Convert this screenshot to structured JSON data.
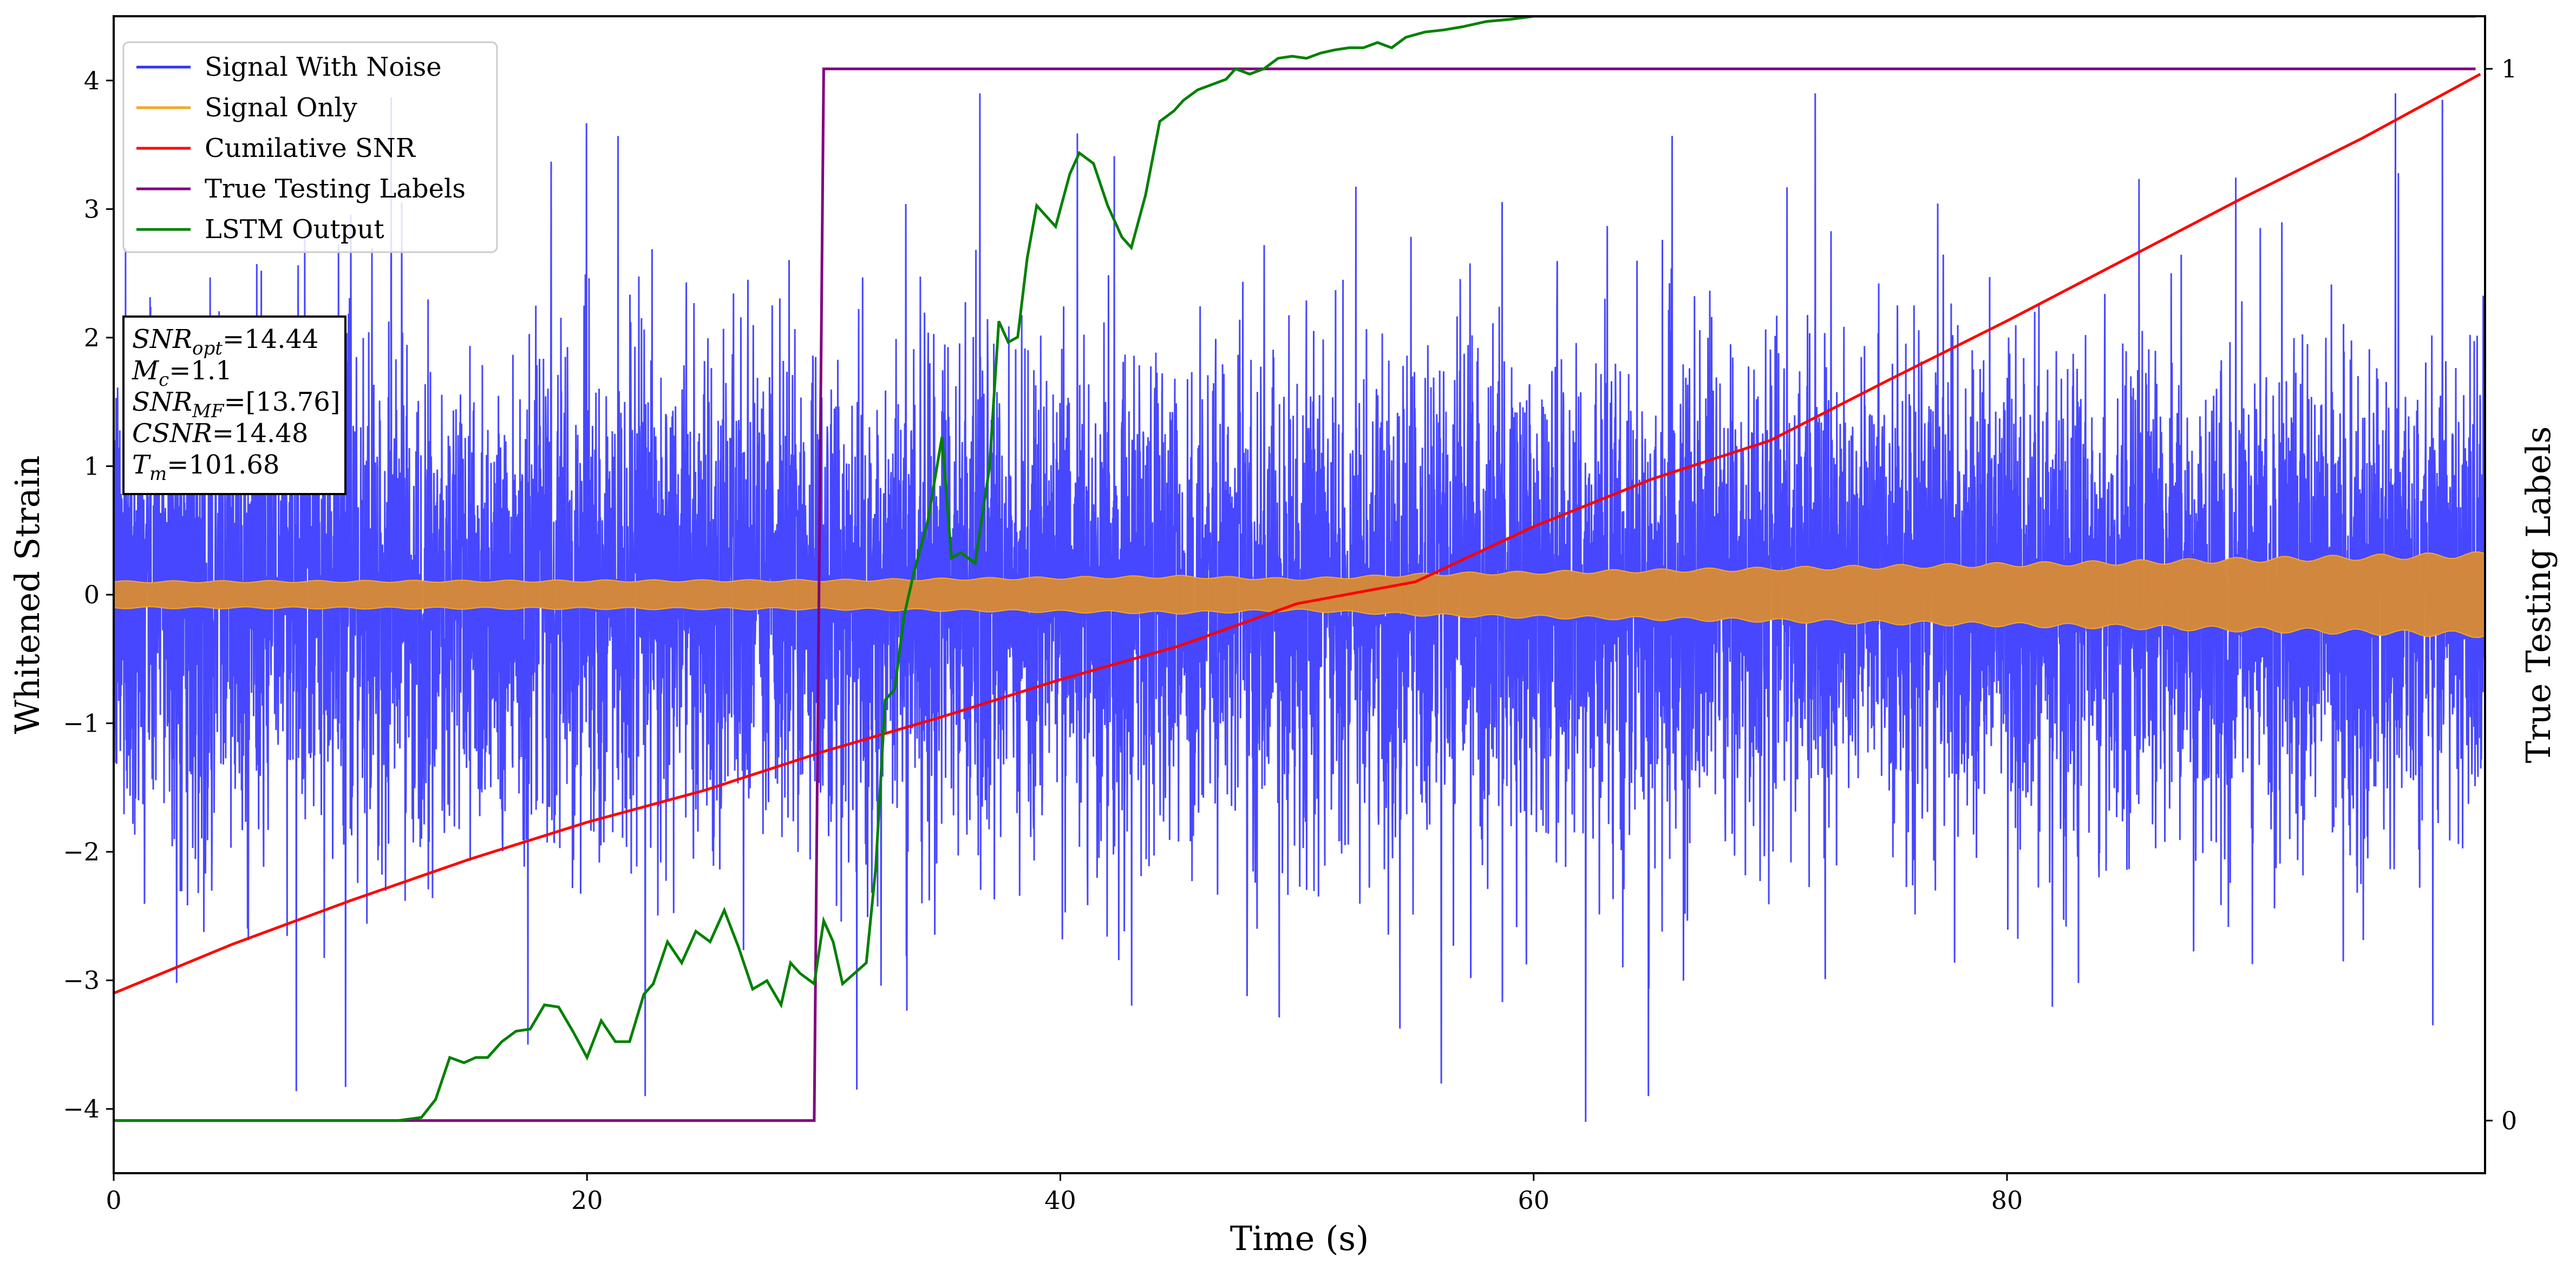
{
  "chart_data": {
    "type": "line",
    "xlabel": "Time (s)",
    "ylabel": "Whitened Strain",
    "y2label": "True Testing Labels",
    "xlim": [
      0,
      100.2
    ],
    "ylim": [
      -4.5,
      4.5
    ],
    "y2lim": [
      -0.05,
      1.05
    ],
    "xticks": [
      0,
      20,
      40,
      60,
      80
    ],
    "yticks": [
      -4,
      -3,
      -2,
      -1,
      0,
      1,
      2,
      3,
      4
    ],
    "y2ticks": [
      0,
      1
    ],
    "grid": false,
    "legend_position": "top-left",
    "info_box": {
      "lines": [
        {
          "sym": "SNR",
          "sub": "opt",
          "value": "=14.44"
        },
        {
          "sym": "M",
          "sub": "c",
          "value": "=1.1"
        },
        {
          "sym": "SNR",
          "sub": "MF",
          "value": "=[13.76]"
        },
        {
          "sym": "CSNR",
          "sub": "",
          "value": "=14.48"
        },
        {
          "sym": "T",
          "sub": "m",
          "value": "=101.68"
        }
      ]
    },
    "series": [
      {
        "name": "Signal With Noise",
        "color": "#3333ff",
        "axis": "left",
        "style": "noise",
        "typical_amplitude": 1.1,
        "peak_amplitude": 3.9,
        "x_range": [
          0,
          100.2
        ],
        "notable_peaks": [
          {
            "x": 0.5,
            "y": 2.7
          },
          {
            "x": 9.8,
            "y": -3.83
          },
          {
            "x": 26.8,
            "y": 2.45
          },
          {
            "x": 31.4,
            "y": -3.85
          },
          {
            "x": 62.2,
            "y": -4.1
          },
          {
            "x": 71.9,
            "y": 3.9
          },
          {
            "x": 98.4,
            "y": 3.85
          },
          {
            "x": 98.0,
            "y": -3.35
          },
          {
            "x": 17.5,
            "y": -3.5
          }
        ]
      },
      {
        "name": "Signal Only",
        "color": "#f5a623",
        "axis": "left",
        "style": "envelope",
        "envelope": [
          {
            "x": 0,
            "a": 0.1
          },
          {
            "x": 30,
            "a": 0.11
          },
          {
            "x": 45,
            "a": 0.14
          },
          {
            "x": 50,
            "a": 0.12
          },
          {
            "x": 56,
            "a": 0.16
          },
          {
            "x": 70,
            "a": 0.2
          },
          {
            "x": 85,
            "a": 0.25
          },
          {
            "x": 100,
            "a": 0.31
          }
        ]
      },
      {
        "name": "Cumilative SNR",
        "color": "#ff0000",
        "axis": "left",
        "x": [
          0,
          5,
          10,
          15,
          20,
          25,
          30,
          35,
          40,
          45,
          50,
          55,
          60,
          65,
          70,
          75,
          80,
          85,
          90,
          95,
          100
        ],
        "y": [
          -3.1,
          -2.72,
          -2.38,
          -2.06,
          -1.77,
          -1.52,
          -1.22,
          -0.95,
          -0.66,
          -0.4,
          -0.07,
          0.1,
          0.53,
          0.9,
          1.2,
          1.67,
          2.13,
          2.61,
          3.09,
          3.55,
          4.05
        ]
      },
      {
        "name": "True Testing Labels",
        "color": "#800080",
        "axis": "right",
        "x": [
          0,
          29.6,
          30.0,
          99.8
        ],
        "y": [
          0,
          0,
          1,
          1
        ]
      },
      {
        "name": "LSTM Output",
        "color": "#008000",
        "axis": "right",
        "x": [
          0,
          12.0,
          13.0,
          13.6,
          14.2,
          14.8,
          15.3,
          15.8,
          16.4,
          17.0,
          17.6,
          18.2,
          18.8,
          19.4,
          20.0,
          20.6,
          21.2,
          21.8,
          22.4,
          22.8,
          23.4,
          24.0,
          24.6,
          25.2,
          25.8,
          26.4,
          27.0,
          27.6,
          28.2,
          28.6,
          29.0,
          29.6,
          30.0,
          30.4,
          30.8,
          31.3,
          31.8,
          32.2,
          32.6,
          33.0,
          33.4,
          33.8,
          34.4,
          35.0,
          35.4,
          35.8,
          36.4,
          37.0,
          37.4,
          37.8,
          38.2,
          38.6,
          39.0,
          39.4,
          39.8,
          40.4,
          40.8,
          41.4,
          42.0,
          42.6,
          43.0,
          43.6,
          44.2,
          44.8,
          45.2,
          45.8,
          46.4,
          47.0,
          47.4,
          48.0,
          48.6,
          49.2,
          49.8,
          50.4,
          51.0,
          51.6,
          52.2,
          52.8,
          53.4,
          54.0,
          54.6,
          55.4,
          56.2,
          57.0,
          58.0,
          59.0,
          60.0,
          62.0,
          64.0,
          70.0,
          99.8
        ],
        "y": [
          0,
          0.0,
          0.003,
          0.02,
          0.06,
          0.055,
          0.06,
          0.06,
          0.075,
          0.085,
          0.087,
          0.11,
          0.108,
          0.085,
          0.06,
          0.095,
          0.075,
          0.075,
          0.12,
          0.13,
          0.17,
          0.15,
          0.18,
          0.17,
          0.2,
          0.165,
          0.125,
          0.133,
          0.11,
          0.15,
          0.14,
          0.13,
          0.19,
          0.17,
          0.13,
          0.14,
          0.15,
          0.24,
          0.4,
          0.41,
          0.48,
          0.52,
          0.57,
          0.65,
          0.535,
          0.54,
          0.53,
          0.62,
          0.76,
          0.74,
          0.745,
          0.82,
          0.87,
          0.86,
          0.85,
          0.9,
          0.92,
          0.91,
          0.87,
          0.84,
          0.83,
          0.88,
          0.95,
          0.96,
          0.97,
          0.98,
          0.985,
          0.99,
          1.0,
          0.995,
          1.0,
          1.01,
          1.012,
          1.01,
          1.015,
          1.018,
          1.02,
          1.02,
          1.025,
          1.02,
          1.03,
          1.035,
          1.037,
          1.04,
          1.045,
          1.047,
          1.05,
          1.05,
          1.05,
          1.05,
          1.05
        ]
      }
    ]
  }
}
